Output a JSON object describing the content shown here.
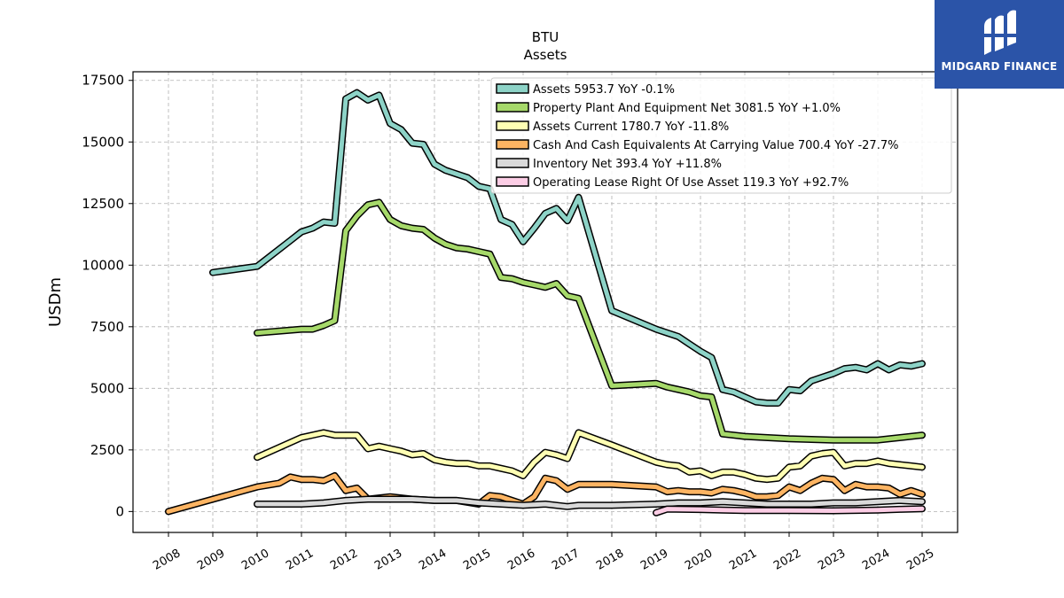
{
  "logo": {
    "text": "MIDGARD FINANCE",
    "color": "#2b54a8"
  },
  "chart_data": {
    "type": "line",
    "title": "BTU",
    "subtitle": "Assets",
    "xlabel": "",
    "ylabel": "USDm",
    "xlim": [
      2007.2,
      2025.8
    ],
    "ylim": [
      -850,
      17850
    ],
    "yticks": [
      0,
      2500,
      5000,
      7500,
      10000,
      12500,
      15000,
      17500
    ],
    "ytick_labels": [
      "0",
      "2500",
      "5000",
      "7500",
      "10000",
      "12500",
      "15000",
      "17500"
    ],
    "xticks": [
      2008,
      2009,
      2010,
      2011,
      2012,
      2013,
      2014,
      2015,
      2016,
      2017,
      2018,
      2019,
      2020,
      2021,
      2022,
      2023,
      2024,
      2025
    ],
    "xtick_labels": [
      "2008",
      "2009",
      "2010",
      "2011",
      "2012",
      "2013",
      "2014",
      "2015",
      "2016",
      "2017",
      "2018",
      "2019",
      "2020",
      "2021",
      "2022",
      "2023",
      "2024",
      "2025"
    ],
    "grid": true,
    "legend_position": "top-right",
    "series": [
      {
        "name": "Assets",
        "legend": "Assets  5953.7 YoY -0.1%",
        "color": "#8dd3c7",
        "points": [
          [
            2009,
            9700
          ],
          [
            2010,
            9950
          ],
          [
            2010.75,
            11000
          ],
          [
            2011,
            11350
          ],
          [
            2011.25,
            11500
          ],
          [
            2011.5,
            11750
          ],
          [
            2011.75,
            11700
          ],
          [
            2012,
            16750
          ],
          [
            2012.25,
            17000
          ],
          [
            2012.5,
            16700
          ],
          [
            2012.75,
            16900
          ],
          [
            2013,
            15750
          ],
          [
            2013.25,
            15500
          ],
          [
            2013.5,
            14950
          ],
          [
            2013.75,
            14900
          ],
          [
            2014,
            14100
          ],
          [
            2014.25,
            13850
          ],
          [
            2014.5,
            13700
          ],
          [
            2014.75,
            13550
          ],
          [
            2015,
            13200
          ],
          [
            2015.25,
            13100
          ],
          [
            2015.5,
            11850
          ],
          [
            2015.75,
            11650
          ],
          [
            2016,
            10950
          ],
          [
            2016.25,
            11500
          ],
          [
            2016.5,
            12100
          ],
          [
            2016.75,
            12300
          ],
          [
            2017,
            11800
          ],
          [
            2017.25,
            12750
          ],
          [
            2018,
            8150
          ],
          [
            2019,
            7400
          ],
          [
            2019.25,
            7250
          ],
          [
            2019.5,
            7100
          ],
          [
            2019.75,
            6800
          ],
          [
            2020,
            6500
          ],
          [
            2020.25,
            6250
          ],
          [
            2020.5,
            4950
          ],
          [
            2020.75,
            4850
          ],
          [
            2021,
            4650
          ],
          [
            2021.25,
            4450
          ],
          [
            2021.5,
            4400
          ],
          [
            2021.75,
            4400
          ],
          [
            2022,
            4950
          ],
          [
            2022.25,
            4900
          ],
          [
            2022.5,
            5300
          ],
          [
            2022.75,
            5450
          ],
          [
            2023,
            5600
          ],
          [
            2023.25,
            5800
          ],
          [
            2023.5,
            5850
          ],
          [
            2023.75,
            5750
          ],
          [
            2024,
            6000
          ],
          [
            2024.25,
            5750
          ],
          [
            2024.5,
            5950
          ],
          [
            2024.75,
            5900
          ],
          [
            2025,
            6000
          ]
        ]
      },
      {
        "name": "Property Plant And Equipment Net",
        "legend": "Property Plant And Equipment Net  3081.5 YoY +1.0%",
        "color": "#a6d96a",
        "points": [
          [
            2010,
            7250
          ],
          [
            2011,
            7400
          ],
          [
            2011.25,
            7400
          ],
          [
            2011.5,
            7550
          ],
          [
            2011.75,
            7750
          ],
          [
            2012,
            11400
          ],
          [
            2012.25,
            12000
          ],
          [
            2012.5,
            12450
          ],
          [
            2012.75,
            12550
          ],
          [
            2013,
            11850
          ],
          [
            2013.25,
            11600
          ],
          [
            2013.5,
            11500
          ],
          [
            2013.75,
            11450
          ],
          [
            2014,
            11100
          ],
          [
            2014.25,
            10850
          ],
          [
            2014.5,
            10700
          ],
          [
            2014.75,
            10650
          ],
          [
            2015,
            10550
          ],
          [
            2015.25,
            10450
          ],
          [
            2015.5,
            9500
          ],
          [
            2015.75,
            9450
          ],
          [
            2016,
            9300
          ],
          [
            2016.25,
            9200
          ],
          [
            2016.5,
            9100
          ],
          [
            2016.75,
            9250
          ],
          [
            2017,
            8750
          ],
          [
            2017.25,
            8650
          ],
          [
            2018,
            5100
          ],
          [
            2019,
            5200
          ],
          [
            2019.25,
            5050
          ],
          [
            2019.5,
            4950
          ],
          [
            2019.75,
            4850
          ],
          [
            2020,
            4700
          ],
          [
            2020.25,
            4650
          ],
          [
            2020.5,
            3150
          ],
          [
            2020.75,
            3100
          ],
          [
            2021,
            3050
          ],
          [
            2022,
            2950
          ],
          [
            2023,
            2900
          ],
          [
            2024,
            2900
          ],
          [
            2025,
            3100
          ]
        ]
      },
      {
        "name": "Assets Current",
        "legend": "Assets Current  1780.7 YoY -11.8%",
        "color": "#ffffb3",
        "points": [
          [
            2010,
            2200
          ],
          [
            2011,
            3000
          ],
          [
            2011.5,
            3200
          ],
          [
            2011.75,
            3100
          ],
          [
            2012,
            3100
          ],
          [
            2012.25,
            3100
          ],
          [
            2012.5,
            2550
          ],
          [
            2012.75,
            2650
          ],
          [
            2013,
            2550
          ],
          [
            2013.25,
            2450
          ],
          [
            2013.5,
            2300
          ],
          [
            2013.75,
            2350
          ],
          [
            2014,
            2100
          ],
          [
            2014.25,
            2000
          ],
          [
            2014.5,
            1950
          ],
          [
            2014.75,
            1950
          ],
          [
            2015,
            1850
          ],
          [
            2015.25,
            1850
          ],
          [
            2015.5,
            1750
          ],
          [
            2015.75,
            1650
          ],
          [
            2016,
            1450
          ],
          [
            2016.25,
            2000
          ],
          [
            2016.5,
            2400
          ],
          [
            2016.75,
            2300
          ],
          [
            2017,
            2150
          ],
          [
            2017.25,
            3200
          ],
          [
            2018,
            2700
          ],
          [
            2019,
            2000
          ],
          [
            2019.25,
            1900
          ],
          [
            2019.5,
            1850
          ],
          [
            2019.75,
            1600
          ],
          [
            2020,
            1650
          ],
          [
            2020.25,
            1450
          ],
          [
            2020.5,
            1600
          ],
          [
            2020.75,
            1600
          ],
          [
            2021,
            1500
          ],
          [
            2021.25,
            1350
          ],
          [
            2021.5,
            1300
          ],
          [
            2021.75,
            1350
          ],
          [
            2022,
            1800
          ],
          [
            2022.25,
            1850
          ],
          [
            2022.5,
            2250
          ],
          [
            2022.75,
            2350
          ],
          [
            2023,
            2400
          ],
          [
            2023.25,
            1850
          ],
          [
            2023.5,
            1950
          ],
          [
            2023.75,
            1950
          ],
          [
            2024,
            2050
          ],
          [
            2024.25,
            1950
          ],
          [
            2024.5,
            1900
          ],
          [
            2024.75,
            1850
          ],
          [
            2025,
            1800
          ]
        ]
      },
      {
        "name": "Cash And Cash Equivalents At Carrying Value",
        "legend": "Cash And Cash Equivalents At Carrying Value  700.4 YoY -27.7%",
        "color": "#fdb462",
        "points": [
          [
            2008,
            0
          ],
          [
            2009,
            500
          ],
          [
            2010,
            1000
          ],
          [
            2010.5,
            1150
          ],
          [
            2010.75,
            1400
          ],
          [
            2011,
            1300
          ],
          [
            2011.25,
            1300
          ],
          [
            2011.5,
            1250
          ],
          [
            2011.75,
            1450
          ],
          [
            2012,
            850
          ],
          [
            2012.25,
            950
          ],
          [
            2012.5,
            500
          ],
          [
            2013,
            600
          ],
          [
            2013.5,
            500
          ],
          [
            2014,
            450
          ],
          [
            2014.5,
            450
          ],
          [
            2015,
            300
          ],
          [
            2015.25,
            650
          ],
          [
            2015.5,
            600
          ],
          [
            2016,
            300
          ],
          [
            2016.25,
            600
          ],
          [
            2016.5,
            1350
          ],
          [
            2016.75,
            1250
          ],
          [
            2017,
            900
          ],
          [
            2017.25,
            1100
          ],
          [
            2018,
            1100
          ],
          [
            2019,
            1000
          ],
          [
            2019.25,
            800
          ],
          [
            2019.5,
            850
          ],
          [
            2019.75,
            800
          ],
          [
            2020,
            800
          ],
          [
            2020.25,
            750
          ],
          [
            2020.5,
            900
          ],
          [
            2020.75,
            850
          ],
          [
            2021,
            750
          ],
          [
            2021.25,
            600
          ],
          [
            2021.5,
            600
          ],
          [
            2021.75,
            650
          ],
          [
            2022,
            1000
          ],
          [
            2022.25,
            850
          ],
          [
            2022.5,
            1150
          ],
          [
            2022.75,
            1350
          ],
          [
            2023,
            1300
          ],
          [
            2023.25,
            850
          ],
          [
            2023.5,
            1100
          ],
          [
            2023.75,
            1000
          ],
          [
            2024,
            1000
          ],
          [
            2024.25,
            950
          ],
          [
            2024.5,
            700
          ],
          [
            2024.75,
            850
          ],
          [
            2025,
            700
          ]
        ]
      },
      {
        "name": "Inventory Net",
        "legend": "Inventory Net  393.4 YoY +11.8%",
        "color": "#d9d9d9",
        "points": [
          [
            2010,
            300
          ],
          [
            2011,
            300
          ],
          [
            2011.5,
            350
          ],
          [
            2012,
            450
          ],
          [
            2012.5,
            500
          ],
          [
            2013,
            500
          ],
          [
            2013.5,
            500
          ],
          [
            2014,
            450
          ],
          [
            2014.5,
            450
          ],
          [
            2015,
            350
          ],
          [
            2015.5,
            300
          ],
          [
            2016,
            250
          ],
          [
            2016.5,
            300
          ],
          [
            2017,
            200
          ],
          [
            2017.25,
            250
          ],
          [
            2018,
            250
          ],
          [
            2019,
            300
          ],
          [
            2019.5,
            350
          ],
          [
            2020,
            350
          ],
          [
            2020.5,
            400
          ],
          [
            2021,
            350
          ],
          [
            2021.5,
            300
          ],
          [
            2022,
            300
          ],
          [
            2022.5,
            300
          ],
          [
            2023,
            350
          ],
          [
            2023.5,
            350
          ],
          [
            2024,
            400
          ],
          [
            2024.5,
            450
          ],
          [
            2025,
            400
          ]
        ]
      },
      {
        "name": "Operating Lease Right Of Use Asset",
        "legend": "Operating Lease Right Of Use Asset  119.3 YoY +92.7%",
        "color": "#fccde5",
        "points": [
          [
            2019,
            -50
          ],
          [
            2019.25,
            100
          ],
          [
            2020,
            80
          ],
          [
            2020.5,
            60
          ],
          [
            2021,
            40
          ],
          [
            2022,
            40
          ],
          [
            2023,
            30
          ],
          [
            2024,
            60
          ],
          [
            2024.5,
            90
          ],
          [
            2025,
            110
          ]
        ]
      }
    ]
  }
}
